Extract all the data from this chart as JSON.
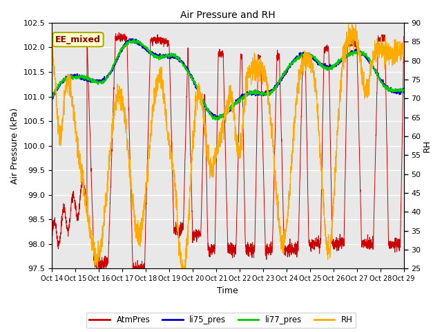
{
  "title": "Air Pressure and RH",
  "xlabel": "Time",
  "ylabel_left": "Air Pressure (kPa)",
  "ylabel_right": "RH",
  "annotation": "EE_mixed",
  "xlim": [
    0,
    15
  ],
  "ylim_left": [
    97.5,
    102.5
  ],
  "ylim_right": [
    25,
    90
  ],
  "xtick_labels": [
    "Oct 14",
    "Oct 15",
    "Oct 16",
    "Oct 17",
    "Oct 18",
    "Oct 19",
    "Oct 20",
    "Oct 21",
    "Oct 22",
    "Oct 23",
    "Oct 24",
    "Oct 25",
    "Oct 26",
    "Oct 27",
    "Oct 28",
    "Oct 29"
  ],
  "yticks_left": [
    97.5,
    98.0,
    98.5,
    99.0,
    99.5,
    100.0,
    100.5,
    101.0,
    101.5,
    102.0,
    102.5
  ],
  "yticks_right": [
    25,
    30,
    35,
    40,
    45,
    50,
    55,
    60,
    65,
    70,
    75,
    80,
    85,
    90
  ],
  "colors": {
    "AtmPres": "#cc0000",
    "li75_pres": "#0000cc",
    "li77_pres": "#00cc00",
    "RH": "#ffaa00"
  },
  "plot_bg_color": "#e8e8e8",
  "grid_color": "#ffffff",
  "annotation_bg": "#ffffcc",
  "annotation_border": "#aaaa00",
  "annotation_text_color": "#880000",
  "figsize": [
    6.4,
    4.8
  ],
  "dpi": 100
}
